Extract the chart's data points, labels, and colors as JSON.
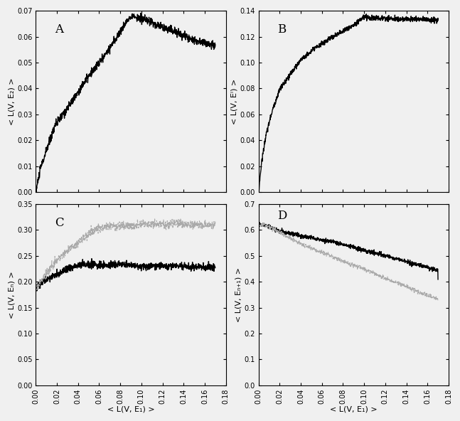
{
  "panel_A": {
    "label": "A",
    "ylabel": "< L(V, E₂) >",
    "xlim": [
      0.0,
      0.18
    ],
    "ylim": [
      0.0,
      0.07
    ],
    "yticks": [
      0.0,
      0.01,
      0.02,
      0.03,
      0.04,
      0.05,
      0.06,
      0.07
    ],
    "xticks": [
      0.0,
      0.02,
      0.04,
      0.06,
      0.08,
      0.1,
      0.12,
      0.14,
      0.16,
      0.18
    ]
  },
  "panel_B": {
    "label": "B",
    "ylabel": "< L(V, Eᴵ) >",
    "xlim": [
      0.0,
      0.18
    ],
    "ylim": [
      0.0,
      0.14
    ],
    "yticks": [
      0.0,
      0.02,
      0.04,
      0.06,
      0.08,
      0.1,
      0.12,
      0.14
    ],
    "xticks": [
      0.0,
      0.02,
      0.04,
      0.06,
      0.08,
      0.1,
      0.12,
      0.14,
      0.16,
      0.18
    ]
  },
  "panel_C": {
    "label": "C",
    "xlabel": "< L(V, E₁) >",
    "ylabel": "< L(V, Eₙ) >",
    "xlim": [
      0.0,
      0.18
    ],
    "ylim": [
      0.0,
      0.35
    ],
    "yticks": [
      0.0,
      0.05,
      0.1,
      0.15,
      0.2,
      0.25,
      0.3,
      0.35
    ],
    "xticks": [
      0.0,
      0.02,
      0.04,
      0.06,
      0.08,
      0.1,
      0.12,
      0.14,
      0.16,
      0.18
    ]
  },
  "panel_D": {
    "label": "D",
    "xlabel": "< L(V, E₁) >",
    "ylabel": "< L(V, Eₙ₊₁) >",
    "xlim": [
      0.0,
      0.18
    ],
    "ylim": [
      0.0,
      0.7
    ],
    "yticks": [
      0.0,
      0.1,
      0.2,
      0.3,
      0.4,
      0.5,
      0.6,
      0.7
    ],
    "xticks": [
      0.0,
      0.02,
      0.04,
      0.06,
      0.08,
      0.1,
      0.12,
      0.14,
      0.16,
      0.18
    ]
  },
  "line_color_solid": "#000000",
  "line_color_dashed": "#aaaaaa",
  "bg_color": "#f0f0f0",
  "seed": 42
}
